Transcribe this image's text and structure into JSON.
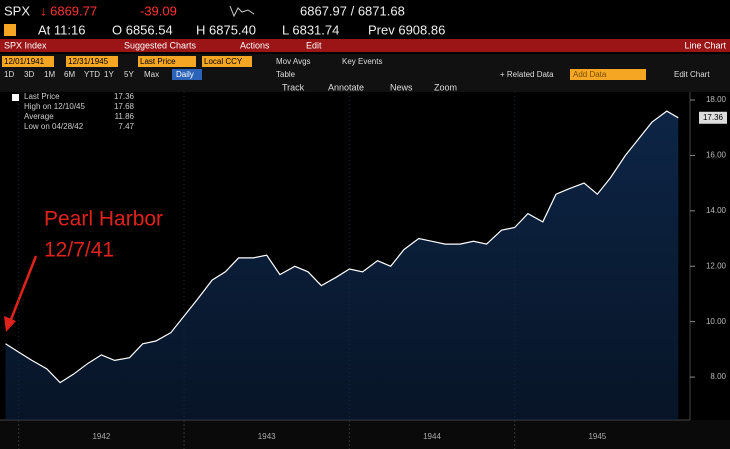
{
  "header": {
    "ticker": "SPX",
    "last": "↓ 6869.77",
    "change": "-39.09",
    "bid_ask": "6867.97 / 6871.68",
    "time": "At 11:16",
    "open": "O 6856.54",
    "high": "H 6875.40",
    "low": "L 6831.74",
    "prev": "Prev 6908.86"
  },
  "menu": {
    "security": "SPX Index",
    "items": [
      "Suggested Charts",
      "Actions",
      "Edit"
    ],
    "view": "Line Chart"
  },
  "toolbar": {
    "start": "12/01/1941",
    "end": "12/31/1945",
    "field": "Last Price",
    "currency": "Local CCY",
    "studies": [
      "Mov Avgs",
      "Key Events"
    ],
    "periods": [
      "1D",
      "3D",
      "1M",
      "6M",
      "YTD",
      "1Y",
      "5Y",
      "Max"
    ],
    "frequency": "Daily",
    "table": "Table",
    "related": "+ Related Data",
    "add": "Add Data",
    "edit": "Edit Chart",
    "tools": [
      "Track",
      "Annotate",
      "News",
      "Zoom"
    ]
  },
  "chart_data": {
    "type": "line",
    "color": "#ffffff",
    "area_color": "#0d2546",
    "annotation": {
      "lines": [
        "Pearl Harbor",
        "12/7/41"
      ],
      "color": "#e0221c"
    },
    "stats": [
      {
        "label": "Last Price",
        "value": 17.36
      },
      {
        "label": "High on 12/10/45",
        "value": 17.68
      },
      {
        "label": "Average",
        "value": 11.86
      },
      {
        "label": "Low on 04/28/42",
        "value": 7.47
      }
    ],
    "x": [
      1941.92,
      1942.0,
      1942.08,
      1942.17,
      1942.25,
      1942.33,
      1942.42,
      1942.5,
      1942.58,
      1942.67,
      1942.75,
      1942.83,
      1942.92,
      1943.0,
      1943.08,
      1943.17,
      1943.25,
      1943.33,
      1943.42,
      1943.5,
      1943.58,
      1943.67,
      1943.75,
      1943.83,
      1943.92,
      1944.0,
      1944.08,
      1944.17,
      1944.25,
      1944.33,
      1944.42,
      1944.5,
      1944.58,
      1944.67,
      1944.75,
      1944.83,
      1944.92,
      1945.0,
      1945.08,
      1945.17,
      1945.25,
      1945.33,
      1945.42,
      1945.5,
      1945.58,
      1945.67,
      1945.75,
      1945.83,
      1945.92,
      1945.99
    ],
    "values": [
      9.2,
      8.9,
      8.6,
      8.3,
      7.8,
      8.1,
      8.5,
      8.8,
      8.6,
      8.7,
      9.2,
      9.3,
      9.6,
      10.2,
      10.8,
      11.5,
      11.8,
      12.3,
      12.3,
      12.4,
      11.7,
      12.0,
      11.8,
      11.3,
      11.6,
      11.9,
      11.8,
      12.2,
      12.0,
      12.6,
      13.0,
      12.9,
      12.8,
      12.8,
      12.9,
      12.8,
      13.3,
      13.4,
      13.9,
      13.6,
      14.6,
      14.8,
      15.0,
      14.6,
      15.2,
      16.0,
      16.6,
      17.2,
      17.6,
      17.36
    ],
    "xlim": [
      1941.917,
      1946.0
    ],
    "ylim": [
      6.45,
      18.29
    ],
    "xticks": [
      {
        "value": 1942,
        "label": "1942"
      },
      {
        "value": 1943,
        "label": "1943"
      },
      {
        "value": 1944,
        "label": "1944"
      },
      {
        "value": 1945,
        "label": "1945"
      }
    ],
    "yticks": [
      {
        "value": 8,
        "label": "8.00"
      },
      {
        "value": 10,
        "label": "10.00"
      },
      {
        "value": 12,
        "label": "12.00"
      },
      {
        "value": 14,
        "label": "14.00"
      },
      {
        "value": 16,
        "label": "16.00"
      },
      {
        "value": 18,
        "label": "18.00"
      }
    ]
  }
}
